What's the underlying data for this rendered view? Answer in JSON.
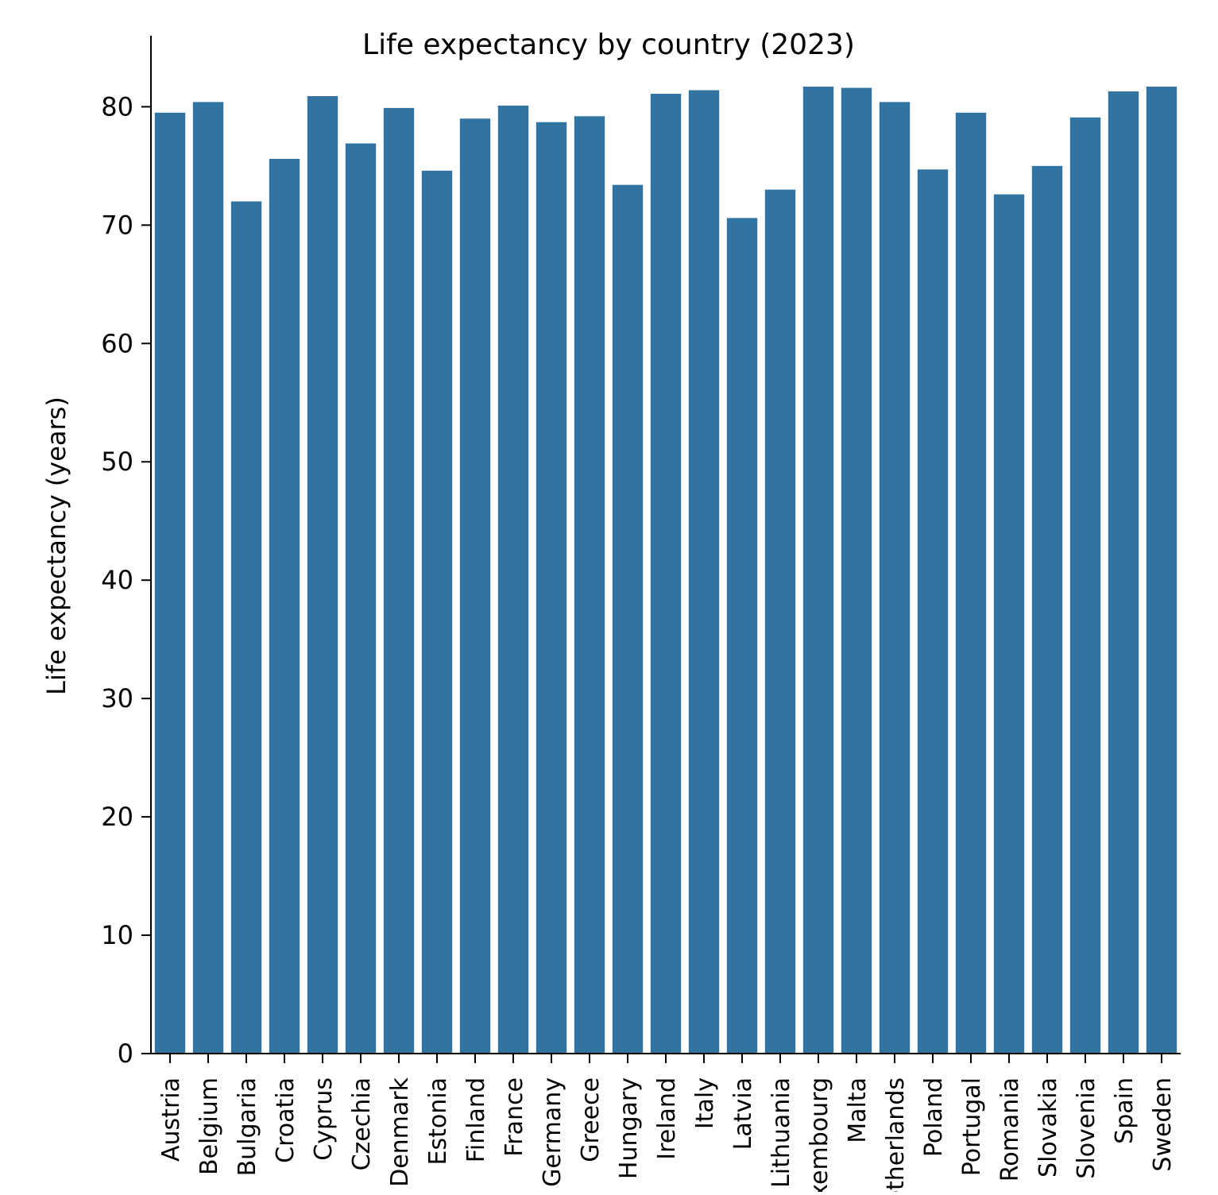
{
  "chart_data": {
    "type": "bar",
    "title": "Life expectancy by country (2023)",
    "xlabel": "",
    "ylabel": "Life expectancy (years)",
    "ylim": [
      0,
      86
    ],
    "yticks": [
      0,
      10,
      20,
      30,
      40,
      50,
      60,
      70,
      80
    ],
    "grid": false,
    "legend": "none",
    "bar_color": "#3274a1",
    "categories": [
      "Austria",
      "Belgium",
      "Bulgaria",
      "Croatia",
      "Cyprus",
      "Czechia",
      "Denmark",
      "Estonia",
      "Finland",
      "France",
      "Germany",
      "Greece",
      "Hungary",
      "Ireland",
      "Italy",
      "Latvia",
      "Lithuania",
      "Luxembourg",
      "Malta",
      "Netherlands",
      "Poland",
      "Portugal",
      "Romania",
      "Slovakia",
      "Slovenia",
      "Spain",
      "Sweden"
    ],
    "values": [
      79.5,
      80.4,
      72.0,
      75.6,
      80.9,
      76.9,
      79.9,
      74.6,
      79.0,
      80.1,
      78.7,
      79.2,
      73.4,
      81.1,
      81.4,
      70.6,
      73.0,
      81.7,
      81.6,
      80.4,
      74.7,
      79.5,
      72.6,
      75.0,
      79.1,
      81.3,
      81.7
    ]
  }
}
